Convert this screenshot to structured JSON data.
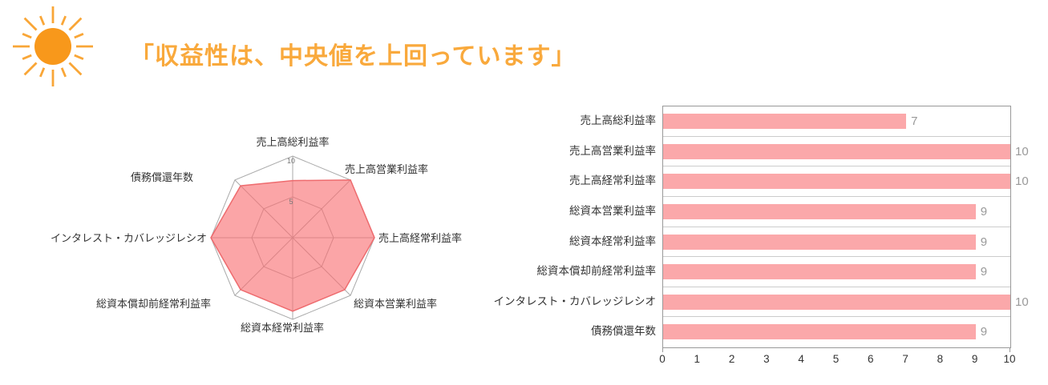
{
  "header": {
    "title": "「収益性は、中央値を上回っています」",
    "title_color": "#F9A93C",
    "sun_icon": {
      "name": "sun-icon",
      "circle_color": "#F8981B",
      "ray_color": "#F9A637"
    }
  },
  "chart_data": [
    {
      "type": "radar",
      "categories": [
        "売上高総利益率",
        "売上高営業利益率",
        "売上高経常利益率",
        "総資本営業利益率",
        "総資本経常利益率",
        "総資本償却前経常利益率",
        "インタレスト・カバレッジレシオ",
        "債務償還年数"
      ],
      "values": [
        7,
        10,
        10,
        9,
        9,
        9,
        10,
        9
      ],
      "rmax": 10,
      "ring_ticks": [
        10,
        5
      ],
      "ring_tick_labels": [
        "10",
        "5"
      ],
      "fill": "rgba(248,110,113,0.62)",
      "stroke": "#EE6B6E",
      "grid_color": "#AAAAAA",
      "ring_tick_color": "#777777",
      "label_color": "#333333",
      "legend": "none",
      "grid": true
    },
    {
      "type": "bar",
      "orientation": "horizontal",
      "categories": [
        "売上高総利益率",
        "売上高営業利益率",
        "売上高経常利益率",
        "総資本営業利益率",
        "総資本経常利益率",
        "総資本償却前経常利益率",
        "インタレスト・カバレッジレシオ",
        "債務償還年数"
      ],
      "values": [
        7,
        10,
        10,
        9,
        9,
        9,
        10,
        9
      ],
      "value_labels": [
        "7",
        "10",
        "10",
        "9",
        "9",
        "9",
        "10",
        "9"
      ],
      "xlim": [
        0,
        10
      ],
      "x_ticks": [
        "0",
        "1",
        "2",
        "3",
        "4",
        "5",
        "6",
        "7",
        "8",
        "9",
        "10"
      ],
      "bar_color": "#FBA8AA",
      "value_label_color": "#999999",
      "label_color": "#333333",
      "axis_color": "#999999",
      "separator_color": "#CCCCCC",
      "legend": "none",
      "grid": "row-separators"
    }
  ]
}
